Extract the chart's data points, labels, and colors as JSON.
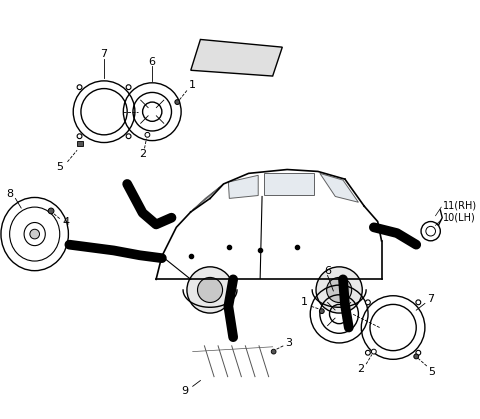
{
  "bg_color": "#ffffff",
  "line_color": "#000000",
  "gray_color": "#808080",
  "light_gray": "#cccccc",
  "dark_gray": "#555555",
  "fig_width": 4.8,
  "fig_height": 4.19,
  "dpi": 100
}
